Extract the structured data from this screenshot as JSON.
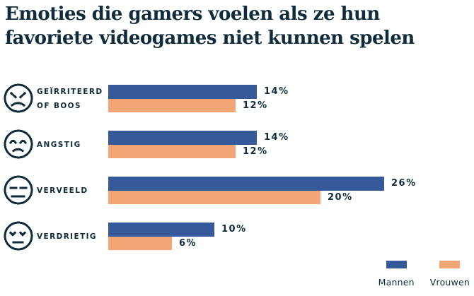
{
  "title": {
    "line1": "Emoties die gamers voelen als ze hun",
    "line2": "favoriete videogames niet kunnen spelen",
    "full": "Emoties die gamers voelen als ze hun favoriete videogames niet kunnen spelen"
  },
  "colors": {
    "text": "#0f2b3c",
    "men": "#36599a",
    "women": "#f4a575",
    "background": "#ffffff"
  },
  "chart_data": {
    "type": "bar",
    "orientation": "horizontal",
    "title": "Emoties die gamers voelen als ze hun favoriete videogames niet kunnen spelen",
    "value_suffix": "%",
    "xlim": [
      0,
      30
    ],
    "grid": false,
    "axis_visible": false,
    "legend_position": "bottom-right",
    "categories": [
      {
        "id": "geirriteerd-of-boos",
        "label": "Geïrriteerd of boos",
        "label_lines": [
          "GEÏRRITEERD",
          "OF BOOS"
        ],
        "icon": "angry-face-icon"
      },
      {
        "id": "angstig",
        "label": "Angstig",
        "label_lines": [
          "ANGSTIG"
        ],
        "icon": "anxious-face-icon"
      },
      {
        "id": "verveeld",
        "label": "Verveeld",
        "label_lines": [
          "VERVEELD"
        ],
        "icon": "bored-face-icon"
      },
      {
        "id": "verdrietig",
        "label": "Verdrietig",
        "label_lines": [
          "VERDRIETIG"
        ],
        "icon": "sad-face-icon"
      }
    ],
    "series": [
      {
        "name": "Mannen",
        "color": "#36599a",
        "values": [
          14,
          14,
          26,
          10
        ]
      },
      {
        "name": "Vrouwen",
        "color": "#f4a575",
        "values": [
          12,
          12,
          20,
          6
        ]
      }
    ]
  }
}
